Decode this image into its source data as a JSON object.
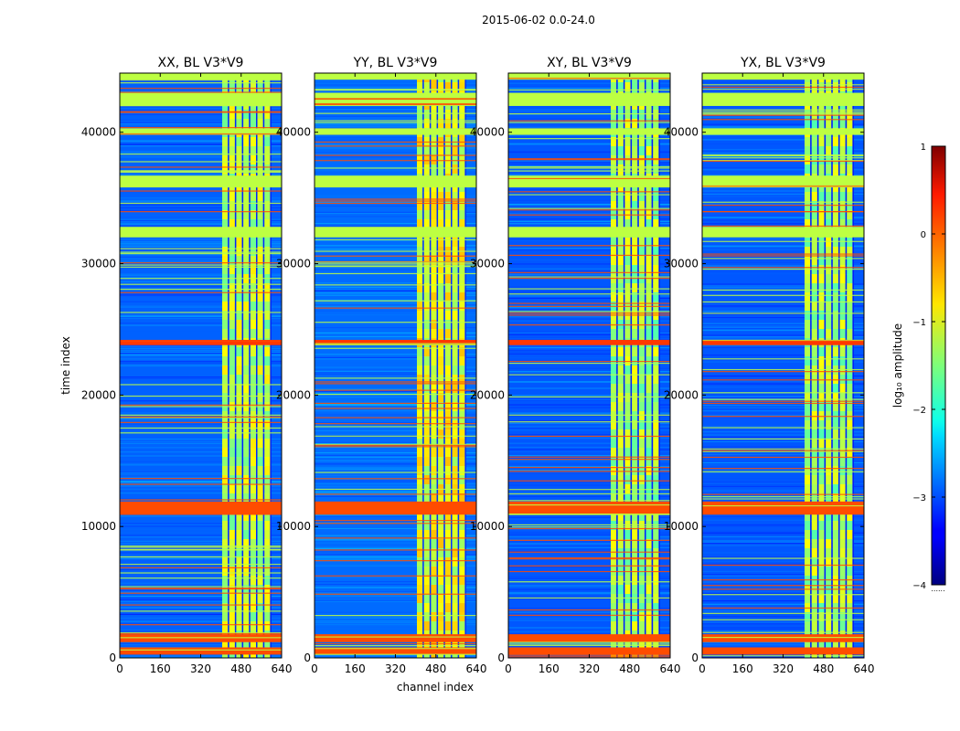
{
  "suptitle": "2015-06-02 0.0-24.0",
  "xlabel": "channel index",
  "ylabel": "time index",
  "colorbar": {
    "label": "log₁₀ amplitude",
    "range": [
      -4,
      1
    ],
    "ticks": [
      1,
      0,
      -1,
      -2,
      -3,
      -4
    ],
    "tick_labels": [
      "1",
      "0",
      "−1",
      "−2",
      "−3",
      "−4"
    ],
    "dots": "......"
  },
  "chart_data": [
    {
      "type": "heatmap",
      "title": "XX, BL V3*V9",
      "xlabel": "channel index",
      "ylabel": "time index",
      "xlim": [
        0,
        640
      ],
      "ylim": [
        0,
        44500
      ],
      "x_ticks": [
        0,
        160,
        320,
        480,
        640
      ],
      "y_ticks": [
        0,
        10000,
        20000,
        30000,
        40000
      ],
      "value_range": [
        -4,
        1
      ],
      "signal_channels": [
        405,
        600
      ],
      "background_level": -2.9,
      "signal_level": -1.2,
      "flag_bands": [
        {
          "t0": 250,
          "t1": 800,
          "level": 0.0
        },
        {
          "t0": 1200,
          "t1": 1800,
          "level": 0.0
        },
        {
          "t0": 10900,
          "t1": 11900,
          "level": 0.0
        },
        {
          "t0": 23800,
          "t1": 24200,
          "level": 0.1
        },
        {
          "t0": 32000,
          "t1": 32800,
          "level": -1.2
        },
        {
          "t0": 35800,
          "t1": 36700,
          "level": -1.2
        },
        {
          "t0": 39800,
          "t1": 40300,
          "level": -1.2
        },
        {
          "t0": 42000,
          "t1": 43000,
          "level": -1.2
        },
        {
          "t0": 44000,
          "t1": 44500,
          "level": -1.2
        }
      ]
    },
    {
      "type": "heatmap",
      "title": "YY, BL V3*V9",
      "xlabel": "channel index",
      "ylabel": "time index",
      "xlim": [
        0,
        640
      ],
      "ylim": [
        0,
        44500
      ],
      "x_ticks": [
        0,
        160,
        320,
        480,
        640
      ],
      "y_ticks": [
        0,
        10000,
        20000,
        30000,
        40000
      ],
      "value_range": [
        -4,
        1
      ],
      "signal_channels": [
        405,
        600
      ],
      "background_level": -2.85,
      "signal_level": -1.0,
      "flag_bands": [
        {
          "t0": 250,
          "t1": 800,
          "level": 0.0
        },
        {
          "t0": 1200,
          "t1": 1800,
          "level": 0.0
        },
        {
          "t0": 10900,
          "t1": 11900,
          "level": 0.0
        },
        {
          "t0": 23800,
          "t1": 24200,
          "level": 0.1
        },
        {
          "t0": 32000,
          "t1": 32800,
          "level": -1.2
        },
        {
          "t0": 35800,
          "t1": 36700,
          "level": -1.2
        },
        {
          "t0": 39800,
          "t1": 40300,
          "level": -1.2
        },
        {
          "t0": 42000,
          "t1": 43000,
          "level": -1.2
        },
        {
          "t0": 44000,
          "t1": 44500,
          "level": -1.2
        }
      ]
    },
    {
      "type": "heatmap",
      "title": "XY, BL V3*V9",
      "xlabel": "channel index",
      "ylabel": "time index",
      "xlim": [
        0,
        640
      ],
      "ylim": [
        0,
        44500
      ],
      "x_ticks": [
        0,
        160,
        320,
        480,
        640
      ],
      "y_ticks": [
        0,
        10000,
        20000,
        30000,
        40000
      ],
      "value_range": [
        -4,
        1
      ],
      "signal_channels": [
        405,
        600
      ],
      "background_level": -2.95,
      "signal_level": -1.3,
      "flag_bands": [
        {
          "t0": 250,
          "t1": 800,
          "level": 0.0
        },
        {
          "t0": 1200,
          "t1": 1800,
          "level": 0.0
        },
        {
          "t0": 10900,
          "t1": 11900,
          "level": 0.0
        },
        {
          "t0": 23800,
          "t1": 24200,
          "level": 0.1
        },
        {
          "t0": 32000,
          "t1": 32800,
          "level": -1.2
        },
        {
          "t0": 35800,
          "t1": 36700,
          "level": -1.2
        },
        {
          "t0": 39800,
          "t1": 40300,
          "level": -1.2
        },
        {
          "t0": 42000,
          "t1": 43000,
          "level": -1.2
        },
        {
          "t0": 44000,
          "t1": 44500,
          "level": -1.2
        }
      ]
    },
    {
      "type": "heatmap",
      "title": "YX, BL V3*V9",
      "xlabel": "channel index",
      "ylabel": "time index",
      "xlim": [
        0,
        640
      ],
      "ylim": [
        0,
        44500
      ],
      "x_ticks": [
        0,
        160,
        320,
        480,
        640
      ],
      "y_ticks": [
        0,
        10000,
        20000,
        30000,
        40000
      ],
      "value_range": [
        -4,
        1
      ],
      "signal_channels": [
        405,
        600
      ],
      "background_level": -2.95,
      "signal_level": -1.3,
      "flag_bands": [
        {
          "t0": 250,
          "t1": 800,
          "level": 0.0
        },
        {
          "t0": 1200,
          "t1": 1800,
          "level": 0.0
        },
        {
          "t0": 10900,
          "t1": 11900,
          "level": 0.0
        },
        {
          "t0": 23800,
          "t1": 24200,
          "level": 0.1
        },
        {
          "t0": 32000,
          "t1": 32800,
          "level": -1.2
        },
        {
          "t0": 35800,
          "t1": 36700,
          "level": -1.2
        },
        {
          "t0": 39800,
          "t1": 40300,
          "level": -1.2
        },
        {
          "t0": 42000,
          "t1": 43000,
          "level": -1.2
        },
        {
          "t0": 44000,
          "t1": 44500,
          "level": -1.2
        }
      ]
    }
  ]
}
